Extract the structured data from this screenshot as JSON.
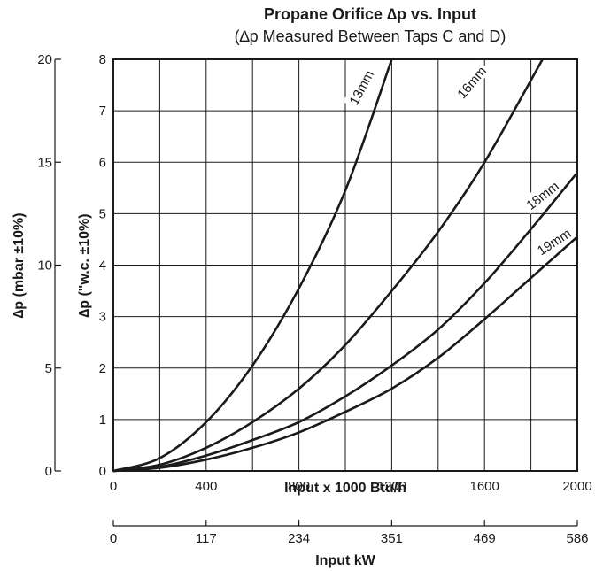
{
  "chart_data": {
    "type": "line",
    "title": "Propane Orifice ∆p vs. Input",
    "subtitle": "(∆p Measured Between Taps C and D)",
    "xlabel": "Input x 1000 Btu/h",
    "xlabel2": "Input kW",
    "ylabel": "∆p (\"w.c. ±10%)",
    "ylabel2": "∆p (mbar ±10%)",
    "xlim": [
      0,
      2000
    ],
    "ylim": [
      0,
      8
    ],
    "x_ticks": [
      "0",
      "400",
      "800",
      "1200",
      "1600",
      "2000"
    ],
    "y_ticks": [
      "0",
      "1",
      "2",
      "3",
      "4",
      "5",
      "6",
      "7",
      "8"
    ],
    "y2_ticks": [
      "0",
      "5",
      "10",
      "15",
      "20"
    ],
    "x2_ticks": [
      "0",
      "117",
      "234",
      "351",
      "469",
      "586"
    ],
    "grid": true,
    "series": [
      {
        "name": "13mm",
        "x": [
          0,
          200,
          400,
          600,
          800,
          1000,
          1200
        ],
        "y": [
          0,
          0.25,
          0.95,
          2.05,
          3.55,
          5.45,
          8.0
        ]
      },
      {
        "name": "16mm",
        "x": [
          0,
          200,
          400,
          600,
          800,
          1000,
          1200,
          1400,
          1600,
          1850
        ],
        "y": [
          0,
          0.12,
          0.45,
          0.95,
          1.6,
          2.45,
          3.5,
          4.65,
          6.0,
          8.0
        ]
      },
      {
        "name": "18mm",
        "x": [
          0,
          200,
          400,
          600,
          800,
          1000,
          1200,
          1400,
          1600,
          1800,
          2000
        ],
        "y": [
          0,
          0.08,
          0.3,
          0.6,
          0.95,
          1.45,
          2.05,
          2.75,
          3.65,
          4.7,
          5.8
        ]
      },
      {
        "name": "19mm",
        "x": [
          0,
          200,
          400,
          600,
          800,
          1000,
          1200,
          1400,
          1600,
          1800,
          2000
        ],
        "y": [
          0,
          0.06,
          0.22,
          0.45,
          0.75,
          1.15,
          1.6,
          2.2,
          2.95,
          3.75,
          4.55
        ]
      }
    ]
  }
}
